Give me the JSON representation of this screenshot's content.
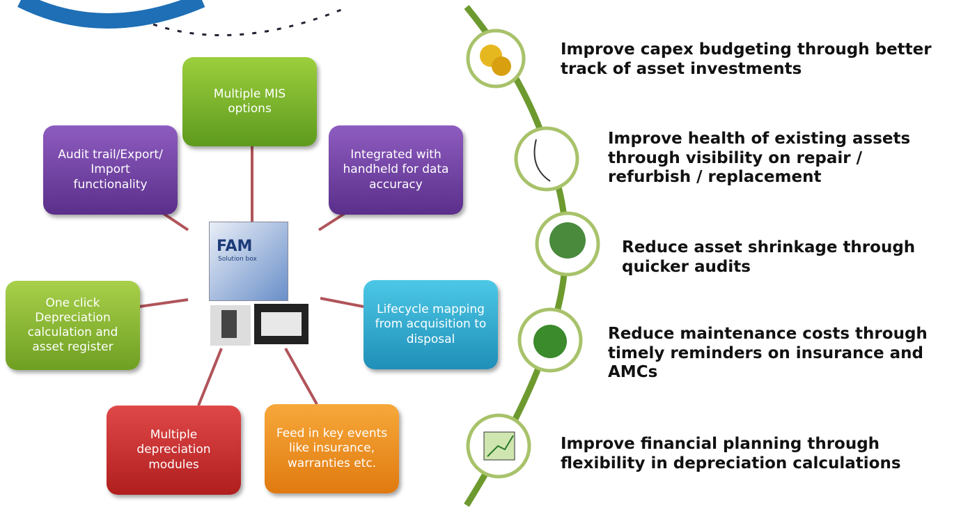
{
  "boxes": [
    {
      "label": "Multiple MIS options"
    },
    {
      "label": "Integrated with handheld for data accuracy"
    },
    {
      "label": "Lifecycle mapping from acquisition to disposal"
    },
    {
      "label": "Feed in key events like insurance, warranties etc."
    },
    {
      "label": "Multiple depreciation modules"
    },
    {
      "label": "One click Depreciation calculation and asset register"
    },
    {
      "label": "Audit trail/Export/ Import functionality"
    }
  ],
  "center": {
    "title": "FAM",
    "subtitle": "Solution box"
  },
  "benefits": [
    {
      "text": "Improve capex budgeting through better track of asset investments"
    },
    {
      "text": "Improve health of existing assets through visibility on repair / refurbish / replacement"
    },
    {
      "text": "Reduce asset shrinkage through quicker audits"
    },
    {
      "text": "Reduce maintenance costs through timely reminders on insurance and AMCs"
    },
    {
      "text": "Improve financial planning through flexibility in depreciation calculations"
    }
  ]
}
